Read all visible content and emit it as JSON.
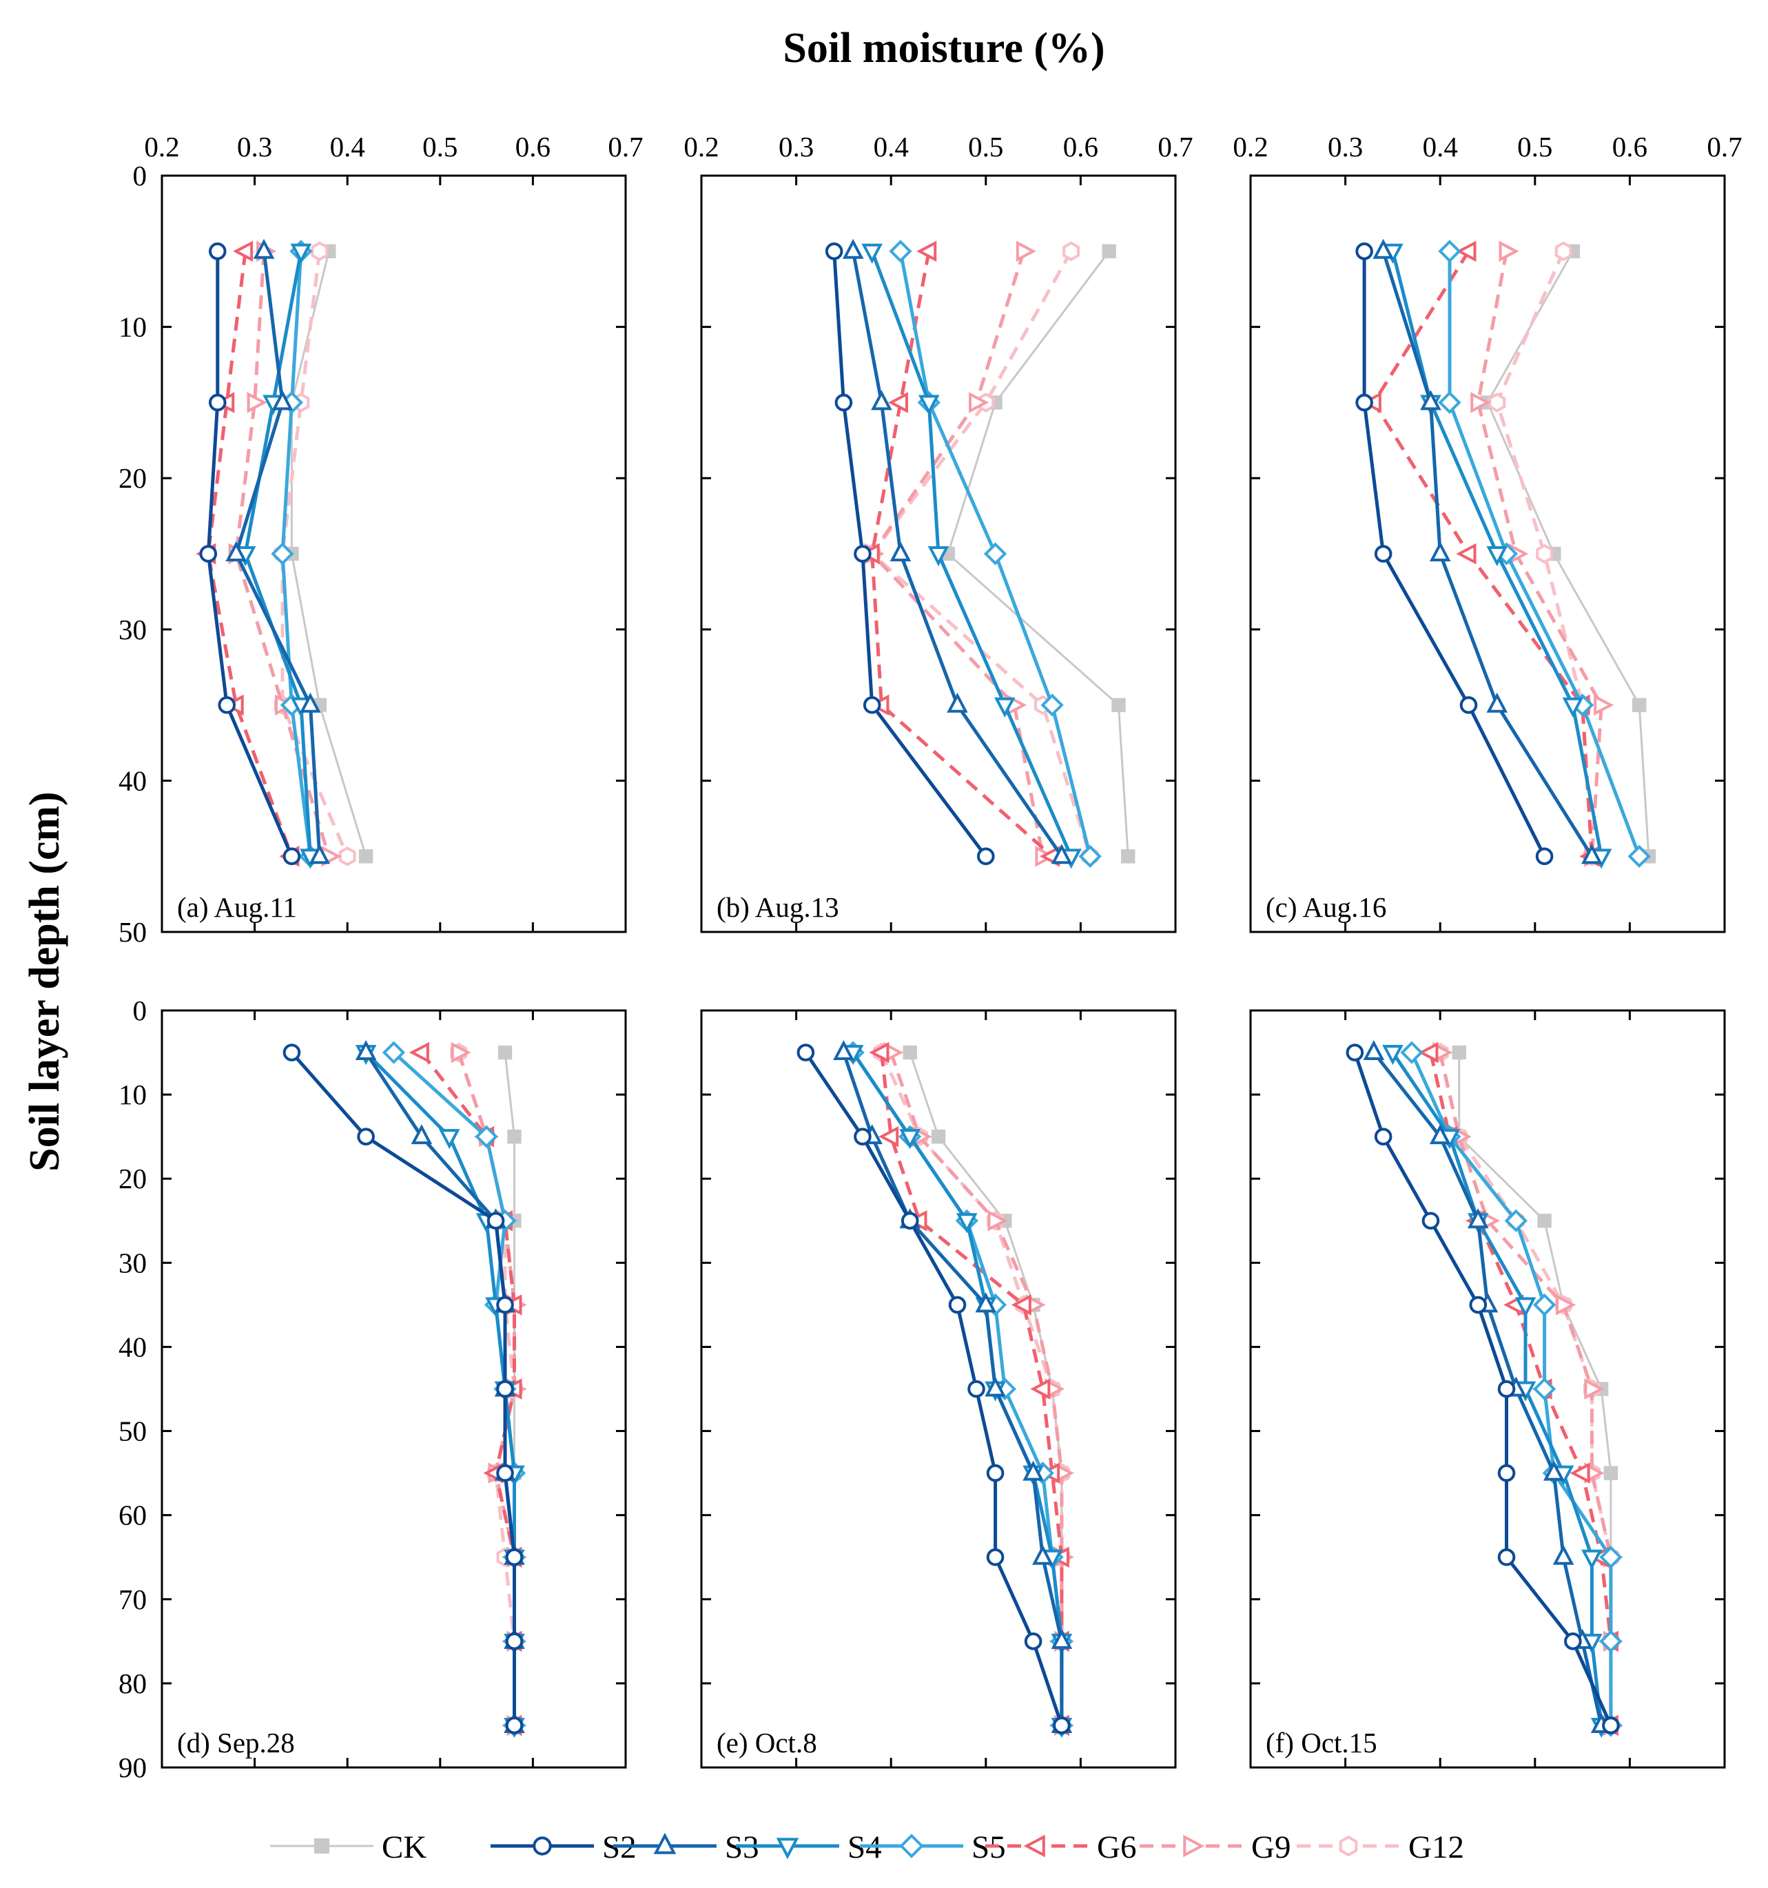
{
  "figure": {
    "xlabel": "Soil moisture (%)",
    "ylabel": "Soil layer depth (cm)"
  },
  "legend": [
    {
      "name": "CK",
      "color": "#c8c8c8",
      "marker": "square",
      "dash": "solid"
    },
    {
      "name": "S2",
      "color": "#0d4a96",
      "marker": "circle",
      "dash": "solid"
    },
    {
      "name": "S3",
      "color": "#1566ac",
      "marker": "triangle-up",
      "dash": "solid"
    },
    {
      "name": "S4",
      "color": "#1b8cc9",
      "marker": "triangle-down",
      "dash": "solid"
    },
    {
      "name": "S5",
      "color": "#3aa8dc",
      "marker": "diamond",
      "dash": "solid"
    },
    {
      "name": "G6",
      "color": "#f0606e",
      "marker": "triangle-left",
      "dash": "dashed"
    },
    {
      "name": "G9",
      "color": "#f59ca6",
      "marker": "triangle-right",
      "dash": "dashed"
    },
    {
      "name": "G12",
      "color": "#f8bfc6",
      "marker": "hexagon",
      "dash": "dashed"
    }
  ],
  "chart_data": [
    {
      "type": "line",
      "title": "(a) Aug.11",
      "xlabel": "Soil moisture (%)",
      "ylabel": "Soil layer depth (cm)",
      "xlim": [
        0.2,
        0.7
      ],
      "ylim": [
        0,
        50
      ],
      "xticks": [
        "0.2",
        "0.3",
        "0.4",
        "0.5",
        "0.6",
        "0.7"
      ],
      "yticks": [
        "0",
        "10",
        "20",
        "30",
        "40",
        "50"
      ],
      "depths": [
        5,
        15,
        25,
        35,
        45
      ],
      "series": [
        {
          "name": "CK",
          "values": [
            0.38,
            0.34,
            0.34,
            0.37,
            0.42
          ]
        },
        {
          "name": "S2",
          "values": [
            0.26,
            0.26,
            0.25,
            0.27,
            0.34
          ]
        },
        {
          "name": "S3",
          "values": [
            0.31,
            0.33,
            0.28,
            0.36,
            0.37
          ]
        },
        {
          "name": "S4",
          "values": [
            0.35,
            0.32,
            0.29,
            0.35,
            0.36
          ]
        },
        {
          "name": "S5",
          "values": [
            0.35,
            0.34,
            0.33,
            0.34,
            0.36
          ]
        },
        {
          "name": "G6",
          "values": [
            0.29,
            0.27,
            0.25,
            0.28,
            0.34
          ]
        },
        {
          "name": "G9",
          "values": [
            0.31,
            0.3,
            0.28,
            0.33,
            0.38
          ]
        },
        {
          "name": "G12",
          "values": [
            0.37,
            0.35,
            0.33,
            0.33,
            0.4
          ]
        }
      ]
    },
    {
      "type": "line",
      "title": "(b) Aug.13",
      "xlabel": "Soil moisture (%)",
      "ylabel": "Soil layer depth (cm)",
      "xlim": [
        0.2,
        0.7
      ],
      "ylim": [
        0,
        50
      ],
      "xticks": [
        "0.2",
        "0.3",
        "0.4",
        "0.5",
        "0.6",
        "0.7"
      ],
      "yticks": [
        "0",
        "10",
        "20",
        "30",
        "40",
        "50"
      ],
      "depths": [
        5,
        15,
        25,
        35,
        45
      ],
      "series": [
        {
          "name": "CK",
          "values": [
            0.63,
            0.51,
            0.46,
            0.64,
            0.65
          ]
        },
        {
          "name": "S2",
          "values": [
            0.34,
            0.35,
            0.37,
            0.38,
            0.5
          ]
        },
        {
          "name": "S3",
          "values": [
            0.36,
            0.39,
            0.41,
            0.47,
            0.58
          ]
        },
        {
          "name": "S4",
          "values": [
            0.38,
            0.44,
            0.45,
            0.52,
            0.59
          ]
        },
        {
          "name": "S5",
          "values": [
            0.41,
            0.44,
            0.51,
            0.57,
            0.61
          ]
        },
        {
          "name": "G6",
          "values": [
            0.44,
            0.41,
            0.38,
            0.39,
            0.57
          ]
        },
        {
          "name": "G9",
          "values": [
            0.54,
            0.49,
            0.38,
            0.53,
            0.56
          ]
        },
        {
          "name": "G12",
          "values": [
            0.59,
            0.5,
            0.38,
            0.56,
            0.61
          ]
        }
      ]
    },
    {
      "type": "line",
      "title": "(c) Aug.16",
      "xlabel": "Soil moisture (%)",
      "ylabel": "Soil layer depth (cm)",
      "xlim": [
        0.2,
        0.7
      ],
      "ylim": [
        0,
        50
      ],
      "xticks": [
        "0.2",
        "0.3",
        "0.4",
        "0.5",
        "0.6",
        "0.7"
      ],
      "yticks": [
        "0",
        "10",
        "20",
        "30",
        "40",
        "50"
      ],
      "depths": [
        5,
        15,
        25,
        35,
        45
      ],
      "series": [
        {
          "name": "CK",
          "values": [
            0.54,
            0.45,
            0.52,
            0.61,
            0.62
          ]
        },
        {
          "name": "S2",
          "values": [
            0.32,
            0.32,
            0.34,
            0.43,
            0.51
          ]
        },
        {
          "name": "S3",
          "values": [
            0.34,
            0.39,
            0.4,
            0.46,
            0.56
          ]
        },
        {
          "name": "S4",
          "values": [
            0.35,
            0.39,
            0.46,
            0.54,
            0.57
          ]
        },
        {
          "name": "S5",
          "values": [
            0.41,
            0.41,
            0.47,
            0.55,
            0.61
          ]
        },
        {
          "name": "G6",
          "values": [
            0.43,
            0.33,
            0.43,
            0.55,
            0.56
          ]
        },
        {
          "name": "G9",
          "values": [
            0.47,
            0.44,
            0.48,
            0.57,
            0.56
          ]
        },
        {
          "name": "G12",
          "values": [
            0.53,
            0.46,
            0.51,
            0.55,
            0.56
          ]
        }
      ]
    },
    {
      "type": "line",
      "title": "(d) Sep.28",
      "xlabel": "Soil moisture (%)",
      "ylabel": "Soil layer depth (cm)",
      "xlim": [
        0.2,
        0.7
      ],
      "ylim": [
        0,
        90
      ],
      "xticks": [
        "0.2",
        "0.3",
        "0.4",
        "0.5",
        "0.6",
        "0.7"
      ],
      "yticks": [
        "0",
        "10",
        "20",
        "30",
        "40",
        "50",
        "60",
        "70",
        "80",
        "90"
      ],
      "depths": [
        5,
        15,
        25,
        35,
        45,
        55,
        65,
        75,
        85
      ],
      "series": [
        {
          "name": "CK",
          "values": [
            0.57,
            0.58,
            0.58,
            0.58,
            0.58,
            0.58,
            0.58,
            0.58,
            0.58
          ]
        },
        {
          "name": "S2",
          "values": [
            0.34,
            0.42,
            0.56,
            0.57,
            0.57,
            0.57,
            0.58,
            0.58,
            0.58
          ]
        },
        {
          "name": "S3",
          "values": [
            0.42,
            0.48,
            0.56,
            0.57,
            0.57,
            0.57,
            0.58,
            0.58,
            0.58
          ]
        },
        {
          "name": "S4",
          "values": [
            0.42,
            0.51,
            0.55,
            0.56,
            0.57,
            0.58,
            0.58,
            0.58,
            0.58
          ]
        },
        {
          "name": "S5",
          "values": [
            0.45,
            0.55,
            0.57,
            0.56,
            0.57,
            0.58,
            0.58,
            0.58,
            0.58
          ]
        },
        {
          "name": "G6",
          "values": [
            0.48,
            0.55,
            0.57,
            0.58,
            0.58,
            0.56,
            0.58,
            0.58,
            0.58
          ]
        },
        {
          "name": "G9",
          "values": [
            0.52,
            0.55,
            0.57,
            0.58,
            0.58,
            0.56,
            0.58,
            0.58,
            0.58
          ]
        },
        {
          "name": "G12",
          "values": [
            0.52,
            0.55,
            0.57,
            0.57,
            0.58,
            0.56,
            0.57,
            0.58,
            0.58
          ]
        }
      ]
    },
    {
      "type": "line",
      "title": "(e) Oct.8",
      "xlabel": "Soil moisture (%)",
      "ylabel": "Soil layer depth (cm)",
      "xlim": [
        0.2,
        0.7
      ],
      "ylim": [
        0,
        90
      ],
      "xticks": [
        "0.2",
        "0.3",
        "0.4",
        "0.5",
        "0.6",
        "0.7"
      ],
      "yticks": [
        "0",
        "10",
        "20",
        "30",
        "40",
        "50",
        "60",
        "70",
        "80",
        "90"
      ],
      "depths": [
        5,
        15,
        25,
        35,
        45,
        55,
        65,
        75,
        85
      ],
      "series": [
        {
          "name": "CK",
          "values": [
            0.42,
            0.45,
            0.52,
            0.55,
            0.57,
            0.58,
            0.58,
            0.58,
            0.58
          ]
        },
        {
          "name": "S2",
          "values": [
            0.31,
            0.37,
            0.42,
            0.47,
            0.49,
            0.51,
            0.51,
            0.55,
            0.58
          ]
        },
        {
          "name": "S3",
          "values": [
            0.35,
            0.38,
            0.42,
            0.5,
            0.51,
            0.55,
            0.56,
            0.58,
            0.58
          ]
        },
        {
          "name": "S4",
          "values": [
            0.36,
            0.42,
            0.48,
            0.5,
            0.51,
            0.55,
            0.57,
            0.58,
            0.58
          ]
        },
        {
          "name": "S5",
          "values": [
            0.36,
            0.42,
            0.48,
            0.51,
            0.52,
            0.56,
            0.57,
            0.58,
            0.58
          ]
        },
        {
          "name": "G6",
          "values": [
            0.39,
            0.4,
            0.43,
            0.54,
            0.56,
            0.57,
            0.58,
            0.58,
            0.58
          ]
        },
        {
          "name": "G9",
          "values": [
            0.4,
            0.43,
            0.51,
            0.55,
            0.57,
            0.58,
            0.58,
            0.58,
            0.58
          ]
        },
        {
          "name": "G12",
          "values": [
            0.39,
            0.43,
            0.51,
            0.54,
            0.57,
            0.58,
            0.58,
            0.58,
            0.58
          ]
        }
      ]
    },
    {
      "type": "line",
      "title": "(f) Oct.15",
      "xlabel": "Soil moisture (%)",
      "ylabel": "Soil layer depth (cm)",
      "xlim": [
        0.2,
        0.7
      ],
      "ylim": [
        0,
        90
      ],
      "xticks": [
        "0.2",
        "0.3",
        "0.4",
        "0.5",
        "0.6",
        "0.7"
      ],
      "yticks": [
        "0",
        "10",
        "20",
        "30",
        "40",
        "50",
        "60",
        "70",
        "80",
        "90"
      ],
      "depths": [
        5,
        15,
        25,
        35,
        45,
        55,
        65,
        75,
        85
      ],
      "series": [
        {
          "name": "CK",
          "values": [
            0.42,
            0.42,
            0.51,
            0.53,
            0.57,
            0.58,
            0.58,
            0.58,
            0.58
          ]
        },
        {
          "name": "S2",
          "values": [
            0.31,
            0.34,
            0.39,
            0.44,
            0.47,
            0.47,
            0.47,
            0.54,
            0.58
          ]
        },
        {
          "name": "S3",
          "values": [
            0.33,
            0.4,
            0.44,
            0.45,
            0.48,
            0.52,
            0.53,
            0.55,
            0.57
          ]
        },
        {
          "name": "S4",
          "values": [
            0.35,
            0.41,
            0.44,
            0.49,
            0.49,
            0.53,
            0.56,
            0.56,
            0.57
          ]
        },
        {
          "name": "S5",
          "values": [
            0.37,
            0.41,
            0.48,
            0.51,
            0.51,
            0.52,
            0.58,
            0.58,
            0.58
          ]
        },
        {
          "name": "G6",
          "values": [
            0.39,
            0.41,
            0.44,
            0.48,
            0.51,
            0.55,
            0.57,
            0.58,
            0.58
          ]
        },
        {
          "name": "G9",
          "values": [
            0.4,
            0.42,
            0.45,
            0.53,
            0.56,
            0.56,
            0.58,
            0.58,
            0.58
          ]
        },
        {
          "name": "G12",
          "values": [
            0.4,
            0.42,
            0.48,
            0.53,
            0.56,
            0.56,
            0.58,
            0.58,
            0.58
          ]
        }
      ]
    }
  ]
}
